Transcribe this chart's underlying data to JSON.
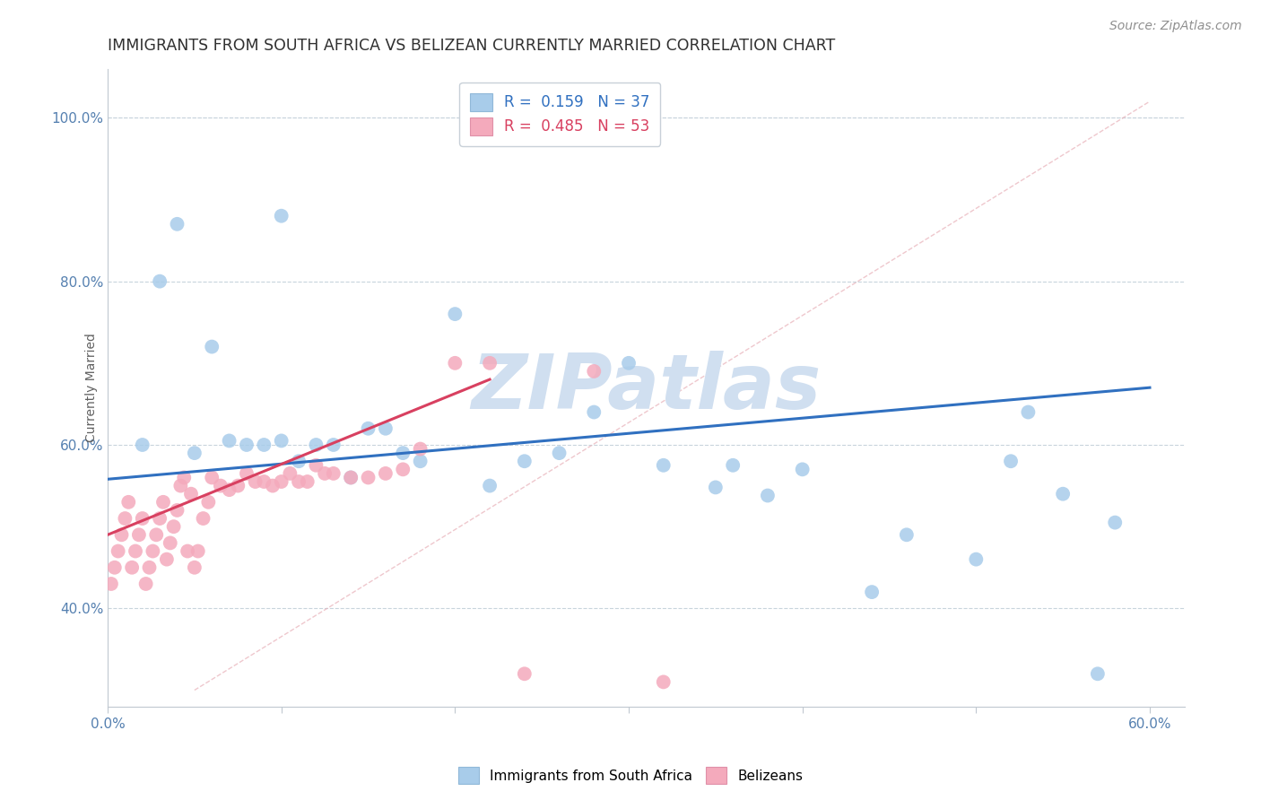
{
  "title": "IMMIGRANTS FROM SOUTH AFRICA VS BELIZEAN CURRENTLY MARRIED CORRELATION CHART",
  "source_text": "Source: ZipAtlas.com",
  "ylabel": "Currently Married",
  "xlim": [
    0.0,
    0.62
  ],
  "ylim": [
    0.28,
    1.06
  ],
  "xticks": [
    0.0,
    0.1,
    0.2,
    0.3,
    0.4,
    0.5,
    0.6
  ],
  "xticklabels": [
    "0.0%",
    "",
    "",
    "",
    "",
    "",
    "60.0%"
  ],
  "yticks": [
    0.4,
    0.6,
    0.8,
    1.0
  ],
  "yticklabels": [
    "40.0%",
    "60.0%",
    "80.0%",
    "100.0%"
  ],
  "legend1_label": "R =  0.159   N = 37",
  "legend2_label": "R =  0.485   N = 53",
  "blue_color": "#A8CCEA",
  "pink_color": "#F4AABC",
  "blue_line_color": "#3070C0",
  "pink_line_color": "#D84060",
  "watermark_text": "ZIPatlas",
  "watermark_color": "#D0DFF0",
  "blue_scatter_x": [
    0.02,
    0.04,
    0.05,
    0.06,
    0.07,
    0.08,
    0.09,
    0.1,
    0.11,
    0.12,
    0.13,
    0.14,
    0.15,
    0.16,
    0.17,
    0.18,
    0.2,
    0.22,
    0.24,
    0.26,
    0.28,
    0.3,
    0.32,
    0.35,
    0.36,
    0.38,
    0.4,
    0.44,
    0.46,
    0.5,
    0.52,
    0.53,
    0.55,
    0.57,
    0.58,
    0.1,
    0.03
  ],
  "blue_scatter_y": [
    0.6,
    0.87,
    0.59,
    0.72,
    0.605,
    0.6,
    0.6,
    0.605,
    0.58,
    0.6,
    0.6,
    0.56,
    0.62,
    0.62,
    0.59,
    0.58,
    0.76,
    0.55,
    0.58,
    0.59,
    0.64,
    0.7,
    0.575,
    0.548,
    0.575,
    0.538,
    0.57,
    0.42,
    0.49,
    0.46,
    0.58,
    0.64,
    0.54,
    0.32,
    0.505,
    0.88,
    0.8
  ],
  "pink_scatter_x": [
    0.002,
    0.004,
    0.006,
    0.008,
    0.01,
    0.012,
    0.014,
    0.016,
    0.018,
    0.02,
    0.022,
    0.024,
    0.026,
    0.028,
    0.03,
    0.032,
    0.034,
    0.036,
    0.038,
    0.04,
    0.042,
    0.044,
    0.046,
    0.048,
    0.05,
    0.052,
    0.055,
    0.058,
    0.06,
    0.065,
    0.07,
    0.075,
    0.08,
    0.085,
    0.09,
    0.095,
    0.1,
    0.105,
    0.11,
    0.115,
    0.12,
    0.125,
    0.13,
    0.14,
    0.15,
    0.16,
    0.17,
    0.18,
    0.2,
    0.22,
    0.24,
    0.28,
    0.32
  ],
  "pink_scatter_y": [
    0.43,
    0.45,
    0.47,
    0.49,
    0.51,
    0.53,
    0.45,
    0.47,
    0.49,
    0.51,
    0.43,
    0.45,
    0.47,
    0.49,
    0.51,
    0.53,
    0.46,
    0.48,
    0.5,
    0.52,
    0.55,
    0.56,
    0.47,
    0.54,
    0.45,
    0.47,
    0.51,
    0.53,
    0.56,
    0.55,
    0.545,
    0.55,
    0.565,
    0.555,
    0.555,
    0.55,
    0.555,
    0.565,
    0.555,
    0.555,
    0.575,
    0.565,
    0.565,
    0.56,
    0.56,
    0.565,
    0.57,
    0.595,
    0.7,
    0.7,
    0.32,
    0.69,
    0.31
  ],
  "blue_trend_x": [
    0.0,
    0.6
  ],
  "blue_trend_y": [
    0.558,
    0.67
  ],
  "pink_trend_x": [
    0.0,
    0.22
  ],
  "pink_trend_y": [
    0.49,
    0.68
  ],
  "ref_line_x": [
    0.05,
    0.6
  ],
  "ref_line_y": [
    0.3,
    1.02
  ],
  "title_fontsize": 12.5,
  "axis_label_fontsize": 10,
  "tick_fontsize": 11,
  "legend_fontsize": 12,
  "source_fontsize": 10
}
